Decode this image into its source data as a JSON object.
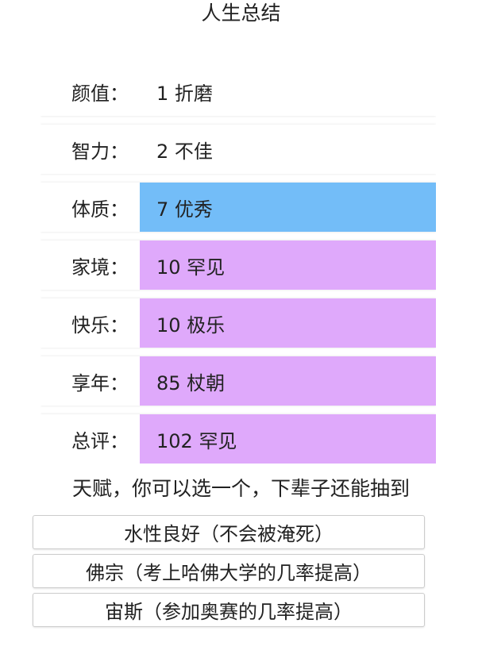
{
  "title": "人生总结",
  "colors": {
    "white": "#ffffff",
    "excellent": "#73bdf8",
    "rare": "#dfa9fb"
  },
  "rows": [
    {
      "label": "颜值：",
      "value": "1 折磨",
      "color": "#ffffff"
    },
    {
      "label": "智力：",
      "value": "2 不佳",
      "color": "#ffffff"
    },
    {
      "label": "体质：",
      "value": "7 优秀",
      "color": "#73bdf8"
    },
    {
      "label": "家境：",
      "value": "10 罕见",
      "color": "#dfa9fb"
    },
    {
      "label": "快乐：",
      "value": "10 极乐",
      "color": "#dfa9fb"
    },
    {
      "label": "享年：",
      "value": "85 杖朝",
      "color": "#dfa9fb"
    },
    {
      "label": "总评：",
      "value": "102 罕见",
      "color": "#dfa9fb"
    }
  ],
  "talent_prompt": "天赋，你可以选一个，下辈子还能抽到",
  "talents": [
    "水性良好（不会被淹死）",
    "佛宗（考上哈佛大学的几率提高）",
    "宙斯（参加奥赛的几率提高）"
  ]
}
